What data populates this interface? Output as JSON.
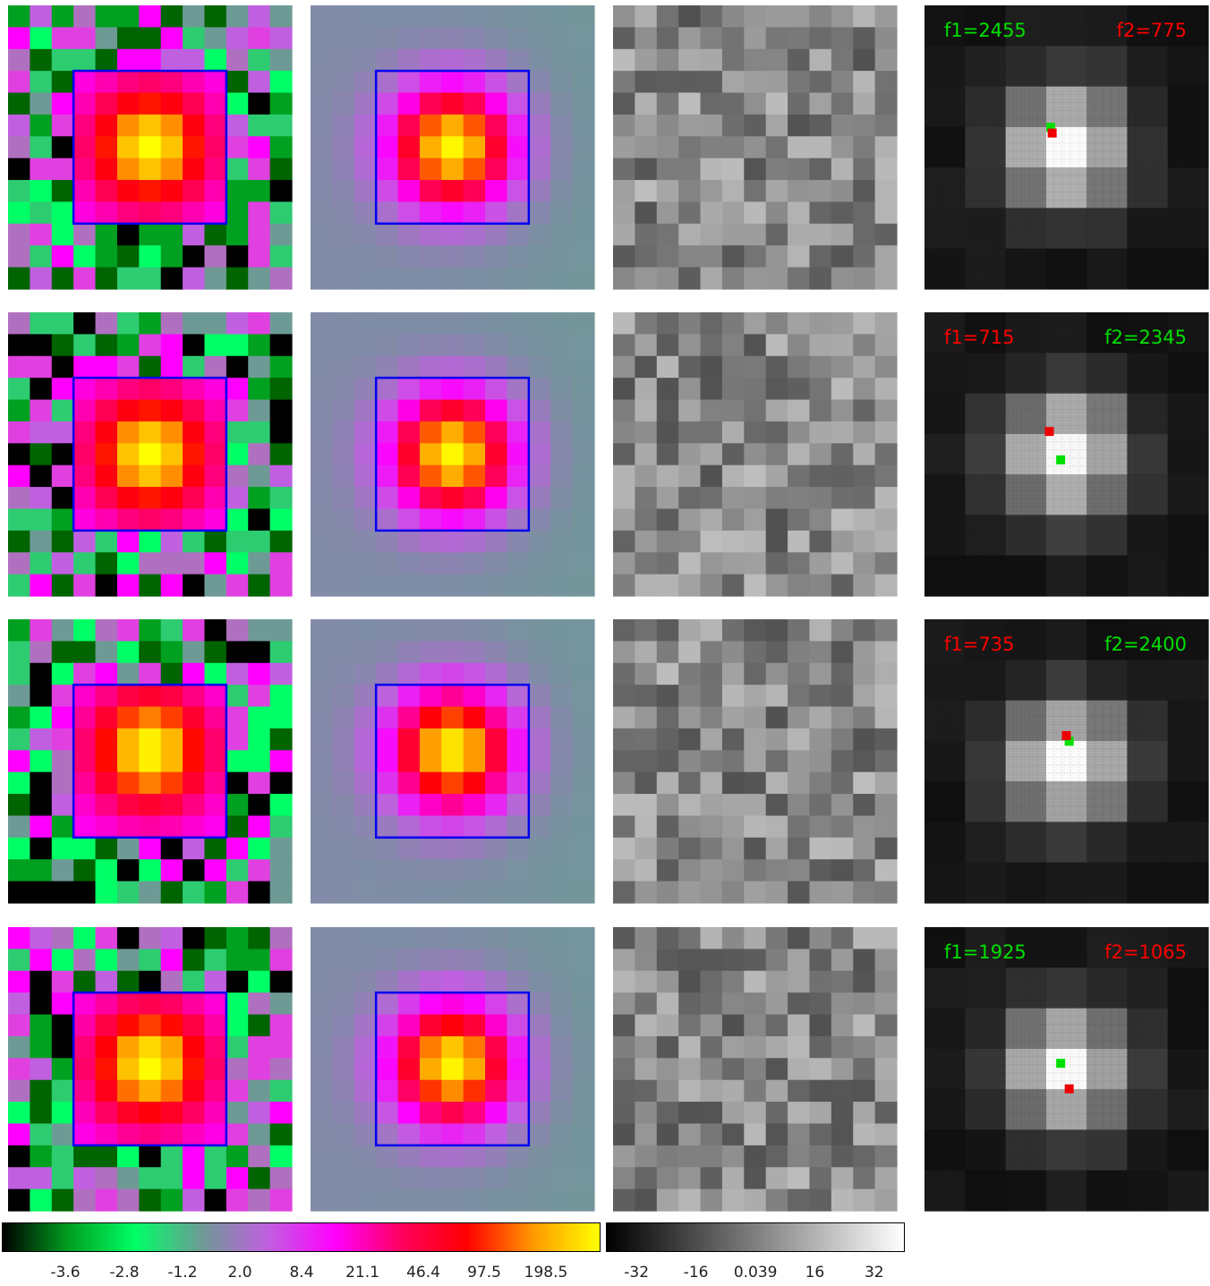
{
  "chart_data": {
    "type": "heatmap",
    "description_rows": 4,
    "panels_per_row": [
      "data",
      "model",
      "residual",
      "source-positions"
    ],
    "grid_size": 13,
    "aperture_box_cells": [
      3,
      3,
      10,
      10
    ],
    "colorbar_main": {
      "colormap": [
        "#000000",
        "#00a020",
        "#00ff66",
        "#6e9a96",
        "#c060e0",
        "#ff00ff",
        "#ff0060",
        "#ff0000",
        "#ff9900",
        "#ffff00"
      ],
      "ticks": [
        "-3.6",
        "-2.8",
        "-1.2",
        "2.0",
        "8.4",
        "21.1",
        "46.4",
        "97.5",
        "198.5"
      ]
    },
    "colorbar_residual": {
      "colormap": [
        "#000000",
        "#ffffff"
      ],
      "range": [
        -40,
        40
      ],
      "ticks": [
        "-32",
        "-16",
        "0.039",
        "16",
        "32"
      ]
    },
    "rows": [
      {
        "peak_col": 6,
        "peak_row": 6,
        "f1": {
          "text": "f1=2455",
          "color": "#00e000"
        },
        "f2": {
          "text": "f2=775",
          "color": "#ff0000"
        },
        "green_marker": [
          0.445,
          0.43
        ],
        "red_marker": [
          0.45,
          0.45
        ]
      },
      {
        "peak_col": 6,
        "peak_row": 6,
        "f1": {
          "text": "f1=715",
          "color": "#ff0000"
        },
        "f2": {
          "text": "f2=2345",
          "color": "#00e000"
        },
        "green_marker": [
          0.48,
          0.52
        ],
        "red_marker": [
          0.44,
          0.42
        ]
      },
      {
        "peak_col": 6,
        "peak_row": 5.5,
        "f1": {
          "text": "f1=735",
          "color": "#ff0000"
        },
        "f2": {
          "text": "f2=2400",
          "color": "#00e000"
        },
        "green_marker": [
          0.51,
          0.43
        ],
        "red_marker": [
          0.5,
          0.41
        ]
      },
      {
        "peak_col": 6,
        "peak_row": 5.8,
        "f1": {
          "text": "f1=1925",
          "color": "#00e000"
        },
        "f2": {
          "text": "f2=1065",
          "color": "#ff0000"
        },
        "green_marker": [
          0.48,
          0.48
        ],
        "red_marker": [
          0.51,
          0.57
        ]
      }
    ]
  }
}
